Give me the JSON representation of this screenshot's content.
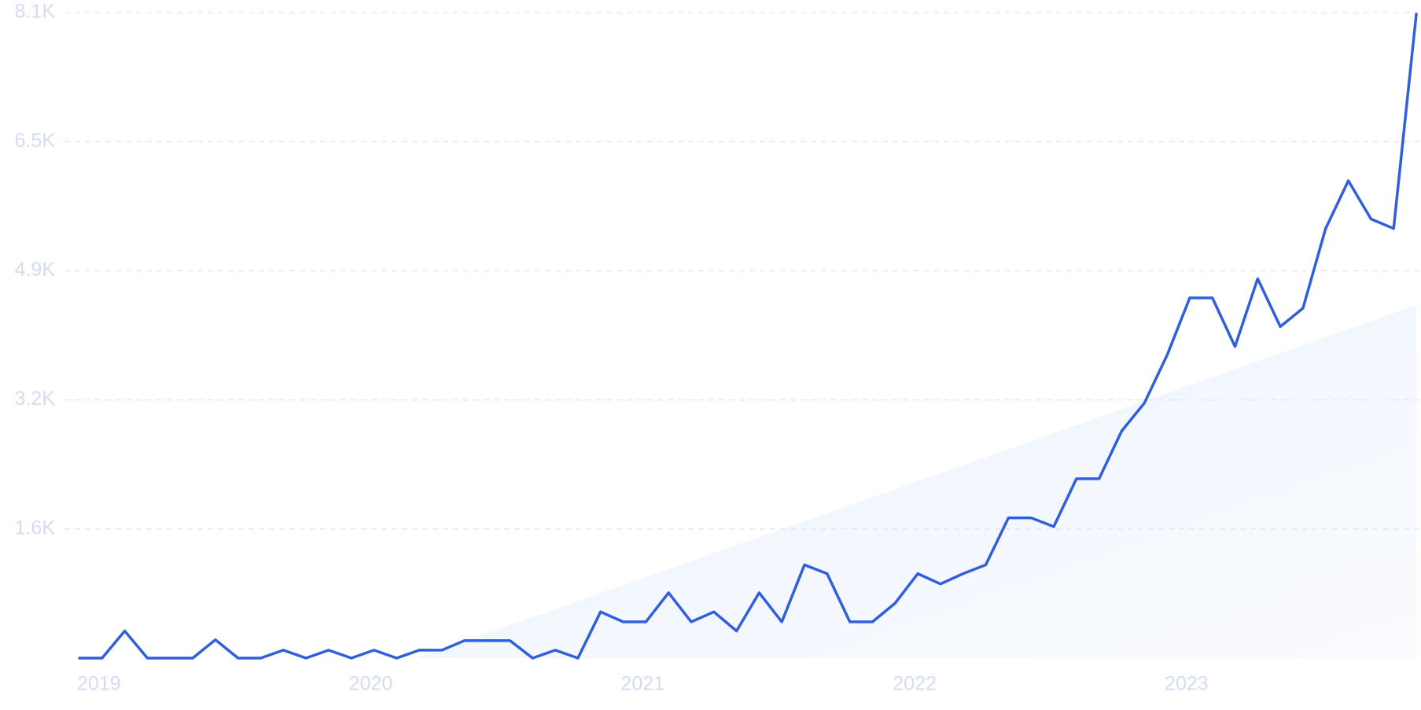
{
  "chart_data": {
    "type": "line",
    "categories": [
      "2019",
      null,
      null,
      null,
      null,
      null,
      null,
      null,
      null,
      null,
      null,
      null,
      "2020",
      null,
      null,
      null,
      null,
      null,
      null,
      null,
      null,
      null,
      null,
      null,
      "2021",
      null,
      null,
      null,
      null,
      null,
      null,
      null,
      null,
      null,
      null,
      null,
      "2022",
      null,
      null,
      null,
      null,
      null,
      null,
      null,
      null,
      null,
      null,
      null,
      "2023",
      null,
      null,
      null,
      null,
      null,
      null,
      null,
      null,
      null,
      null,
      null
    ],
    "values": [
      0,
      0,
      340,
      0,
      0,
      0,
      230,
      0,
      0,
      100,
      0,
      100,
      0,
      100,
      0,
      100,
      100,
      220,
      220,
      220,
      0,
      100,
      0,
      580,
      455,
      455,
      820,
      455,
      580,
      340,
      820,
      455,
      1170,
      1060,
      455,
      455,
      690,
      1060,
      930,
      1060,
      1170,
      1760,
      1760,
      1650,
      2250,
      2250,
      2850,
      3200,
      3800,
      4520,
      4520,
      3910,
      4760,
      4160,
      4390,
      5390,
      5990,
      5510,
      5390,
      8080
    ],
    "color": "#2f5fdc",
    "ylim": [
      0,
      8100
    ],
    "yticks": [
      {
        "value": 1620,
        "label": "1.6K"
      },
      {
        "value": 3240,
        "label": "3.2K"
      },
      {
        "value": 4860,
        "label": "4.9K"
      },
      {
        "value": 6480,
        "label": "6.5K"
      },
      {
        "value": 8100,
        "label": "8.1K"
      }
    ],
    "grid": true
  }
}
